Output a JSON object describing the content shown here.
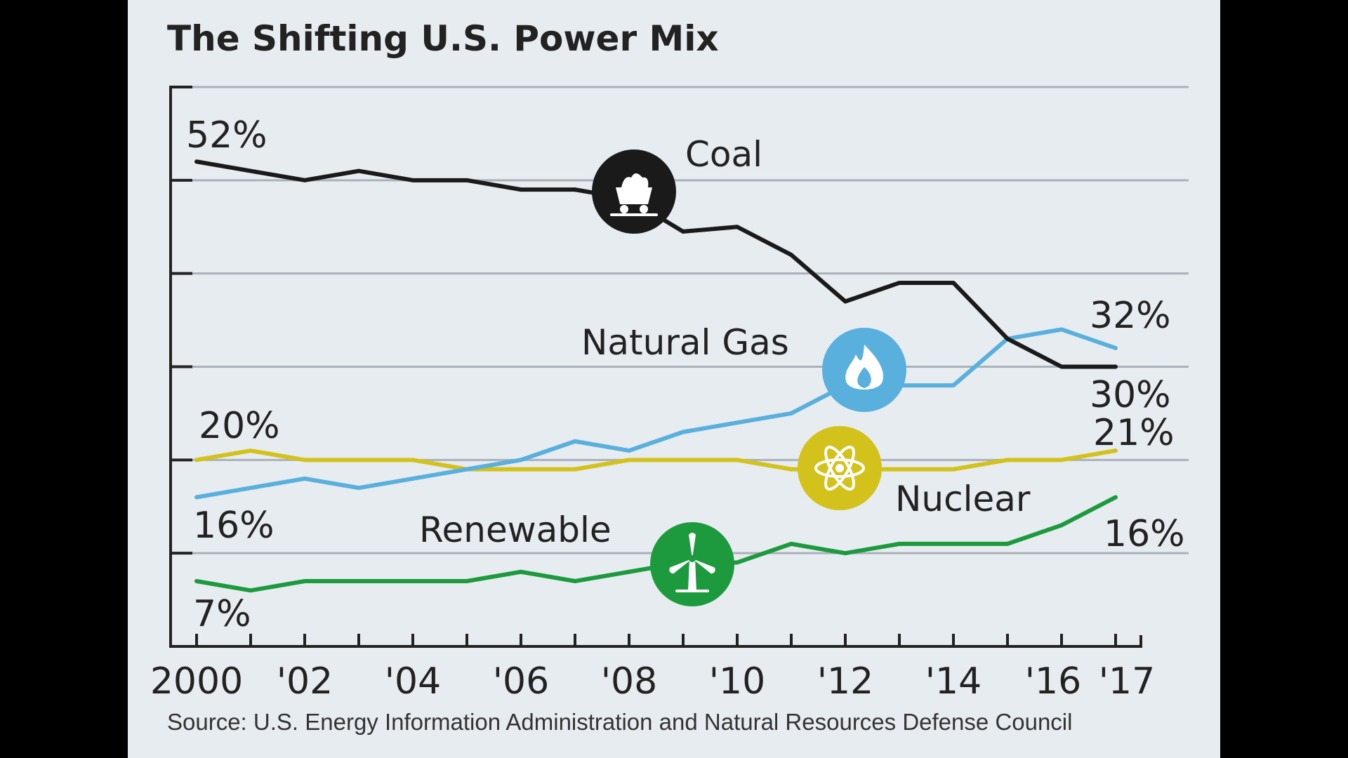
{
  "chart_data": {
    "type": "line",
    "title": "The Shifting U.S. Power Mix",
    "source": "Source: U.S. Energy Information Administration and Natural Resources Defense Council",
    "x": [
      2000,
      2001,
      2002,
      2003,
      2004,
      2005,
      2006,
      2007,
      2008,
      2009,
      2010,
      2011,
      2012,
      2013,
      2014,
      2015,
      2016,
      2017
    ],
    "x_tick_labels": [
      "2000",
      "'02",
      "'04",
      "'06",
      "'08",
      "'10",
      "'12",
      "'14",
      "'16",
      "'17"
    ],
    "ylim": [
      0,
      60
    ],
    "grid": true,
    "series": [
      {
        "name": "Coal",
        "color": "#1a1a1a",
        "icon": "coal-cart-icon",
        "values": [
          52,
          51,
          50,
          51,
          50,
          50,
          49,
          49,
          48,
          44.5,
          45,
          42,
          37,
          39,
          39,
          33,
          30,
          30
        ],
        "start_label": "52%",
        "end_label": "30%"
      },
      {
        "name": "Natural Gas",
        "color": "#5ab0dd",
        "icon": "flame-icon",
        "values": [
          16,
          17,
          18,
          17,
          18,
          19,
          20,
          22,
          21,
          23,
          24,
          25,
          28,
          28,
          28,
          33,
          34,
          32
        ],
        "start_label": "16%",
        "end_label": "32%"
      },
      {
        "name": "Nuclear",
        "color": "#d4c21c",
        "icon": "atom-icon",
        "values": [
          20,
          21,
          20,
          20,
          20,
          19,
          19,
          19,
          20,
          20,
          20,
          19,
          19,
          19,
          19,
          20,
          20,
          21
        ],
        "start_label": "20%",
        "end_label": "21%"
      },
      {
        "name": "Renewable",
        "color": "#1e9a3e",
        "icon": "wind-turbine-icon",
        "values": [
          7,
          6,
          7,
          7,
          7,
          7,
          8,
          7,
          8,
          9,
          9,
          11,
          10,
          11,
          11,
          11,
          13,
          16
        ],
        "start_label": "7%",
        "end_label": "16%"
      }
    ]
  }
}
